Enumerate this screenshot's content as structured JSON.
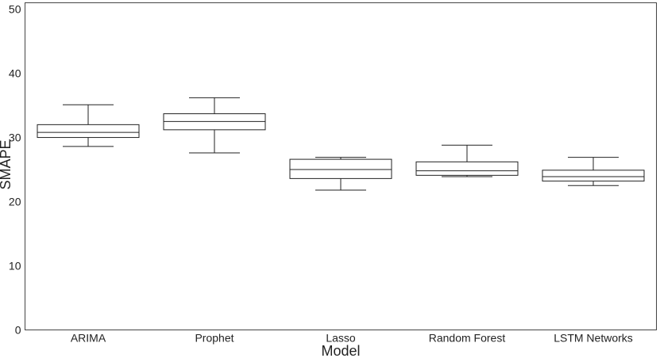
{
  "chart_data": {
    "type": "box",
    "title": "",
    "xlabel": "Model",
    "ylabel": "SMAPE",
    "ylim": [
      0,
      51
    ],
    "yticks": [
      0,
      10,
      20,
      30,
      40,
      50
    ],
    "grid": false,
    "categories": [
      "ARIMA",
      "Prophet",
      "Lasso",
      "Random Forest",
      "LSTM Networks"
    ],
    "boxes": [
      {
        "name": "ARIMA",
        "min": 28.6,
        "q1": 30.0,
        "median": 30.8,
        "q3": 32.0,
        "max": 35.1
      },
      {
        "name": "Prophet",
        "min": 27.6,
        "q1": 31.2,
        "median": 32.5,
        "q3": 33.7,
        "max": 36.2
      },
      {
        "name": "Lasso",
        "min": 21.8,
        "q1": 23.6,
        "median": 25.0,
        "q3": 26.6,
        "max": 26.9
      },
      {
        "name": "Random Forest",
        "min": 23.9,
        "q1": 24.1,
        "median": 24.8,
        "q3": 26.2,
        "max": 28.8
      },
      {
        "name": "LSTM Networks",
        "min": 22.5,
        "q1": 23.2,
        "median": 23.9,
        "q3": 24.9,
        "max": 26.9
      }
    ]
  }
}
